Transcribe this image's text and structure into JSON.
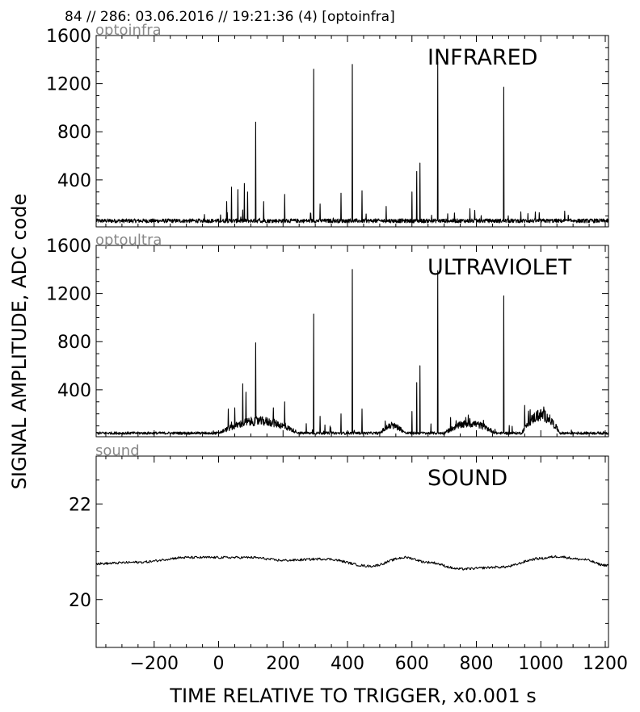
{
  "header": {
    "title": "84 // 286:   03.06.2016 // 19:21:36 (4)  [optoinfra]"
  },
  "chart_data": {
    "type": "line",
    "xlabel": "TIME RELATIVE TO TRIGGER,   x0.001 s",
    "ylabel": "SIGNAL AMPLITUDE,  ADC code",
    "xlim": [
      -380,
      1210
    ],
    "xticks": [
      "−200",
      "0",
      "200",
      "400",
      "600",
      "800",
      "1000",
      "1200"
    ],
    "xtick_values": [
      -200,
      0,
      200,
      400,
      600,
      800,
      1000,
      1200
    ],
    "grid": false,
    "panels": [
      {
        "channel": "optoinfra",
        "title": "INFRARED",
        "ylim": [
          10,
          1600
        ],
        "yticks": [
          "400",
          "800",
          "1200",
          "1600"
        ],
        "ytick_values": [
          400,
          800,
          1200,
          1600
        ],
        "baseline": 60,
        "peaks": [
          {
            "x": 115,
            "y": 880
          },
          {
            "x": 295,
            "y": 1320
          },
          {
            "x": 415,
            "y": 1360
          },
          {
            "x": 680,
            "y": 1380
          },
          {
            "x": 885,
            "y": 1170
          },
          {
            "x": 625,
            "y": 540
          },
          {
            "x": 615,
            "y": 470
          },
          {
            "x": 600,
            "y": 300
          },
          {
            "x": 445,
            "y": 310
          },
          {
            "x": 380,
            "y": 290
          },
          {
            "x": 40,
            "y": 340
          },
          {
            "x": 60,
            "y": 320
          },
          {
            "x": 80,
            "y": 370
          },
          {
            "x": 90,
            "y": 300
          },
          {
            "x": 25,
            "y": 220
          },
          {
            "x": 205,
            "y": 280
          },
          {
            "x": 140,
            "y": 220
          },
          {
            "x": 315,
            "y": 200
          },
          {
            "x": 520,
            "y": 180
          },
          {
            "x": 780,
            "y": 160
          },
          {
            "x": 960,
            "y": 120
          }
        ]
      },
      {
        "channel": "optoultra",
        "title": "ULTRAVIOLET",
        "ylim": [
          10,
          1600
        ],
        "yticks": [
          "400",
          "800",
          "1200",
          "1600"
        ],
        "ytick_values": [
          400,
          800,
          1200,
          1600
        ],
        "baseline": 40,
        "peaks": [
          {
            "x": 115,
            "y": 790
          },
          {
            "x": 295,
            "y": 1030
          },
          {
            "x": 415,
            "y": 1400
          },
          {
            "x": 680,
            "y": 1390
          },
          {
            "x": 885,
            "y": 1180
          },
          {
            "x": 625,
            "y": 600
          },
          {
            "x": 615,
            "y": 460
          },
          {
            "x": 75,
            "y": 450
          },
          {
            "x": 85,
            "y": 380
          },
          {
            "x": 205,
            "y": 300
          },
          {
            "x": 170,
            "y": 250
          },
          {
            "x": 445,
            "y": 240
          },
          {
            "x": 380,
            "y": 200
          },
          {
            "x": 600,
            "y": 220
          },
          {
            "x": 50,
            "y": 250
          },
          {
            "x": 30,
            "y": 240
          },
          {
            "x": 315,
            "y": 180
          },
          {
            "x": 720,
            "y": 170
          },
          {
            "x": 950,
            "y": 270
          },
          {
            "x": 780,
            "y": 160
          }
        ],
        "humps": [
          {
            "from": 0,
            "to": 250,
            "level": 140
          },
          {
            "from": 500,
            "to": 580,
            "level": 100
          },
          {
            "from": 700,
            "to": 860,
            "level": 120
          },
          {
            "from": 940,
            "to": 1060,
            "level": 190
          }
        ]
      },
      {
        "channel": "sound",
        "title": "SOUND",
        "ylim": [
          19,
          23
        ],
        "yticks": [
          "20",
          "22"
        ],
        "ytick_values": [
          20,
          22
        ],
        "series": [
          {
            "x": -380,
            "y": 20.75
          },
          {
            "x": -250,
            "y": 20.78
          },
          {
            "x": -100,
            "y": 20.88
          },
          {
            "x": 0,
            "y": 20.88
          },
          {
            "x": 100,
            "y": 20.88
          },
          {
            "x": 200,
            "y": 20.82
          },
          {
            "x": 330,
            "y": 20.85
          },
          {
            "x": 470,
            "y": 20.7
          },
          {
            "x": 580,
            "y": 20.88
          },
          {
            "x": 650,
            "y": 20.78
          },
          {
            "x": 750,
            "y": 20.64
          },
          {
            "x": 880,
            "y": 20.68
          },
          {
            "x": 1000,
            "y": 20.86
          },
          {
            "x": 1050,
            "y": 20.9
          },
          {
            "x": 1130,
            "y": 20.84
          },
          {
            "x": 1200,
            "y": 20.72
          }
        ]
      }
    ]
  }
}
